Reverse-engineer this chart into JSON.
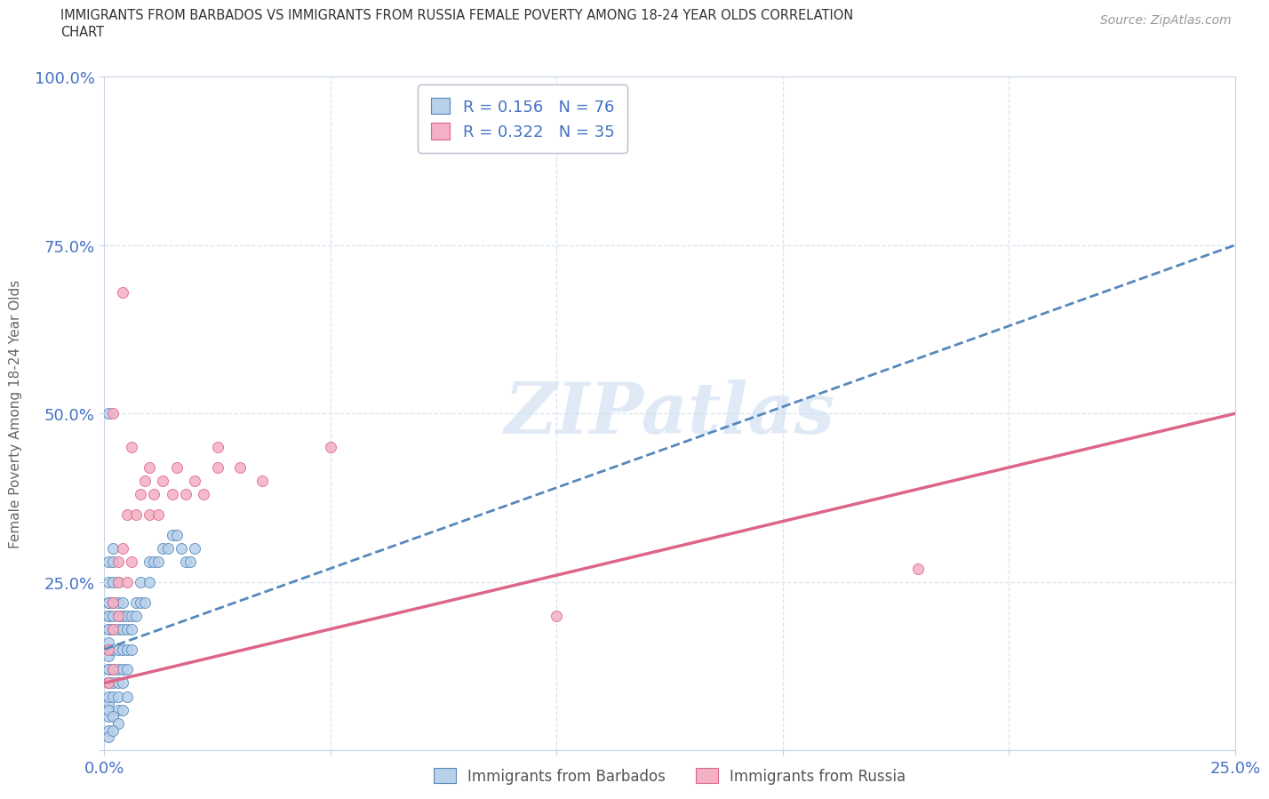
{
  "title_line1": "IMMIGRANTS FROM BARBADOS VS IMMIGRANTS FROM RUSSIA FEMALE POVERTY AMONG 18-24 YEAR OLDS CORRELATION",
  "title_line2": "CHART",
  "source": "Source: ZipAtlas.com",
  "ylabel": "Female Poverty Among 18-24 Year Olds",
  "xlim": [
    0.0,
    0.25
  ],
  "ylim": [
    0.0,
    1.0
  ],
  "barbados_fill": "#b8d0ea",
  "barbados_edge": "#5588bb",
  "russia_fill": "#f4b0c4",
  "russia_edge": "#dd6688",
  "trend_blue": "#5588bb",
  "trend_pink": "#dd6688",
  "watermark_text": "ZIPatlas",
  "watermark_color": "#ccddf0",
  "R_barbados": 0.156,
  "N_barbados": 76,
  "R_russia": 0.322,
  "N_russia": 35,
  "grid_color": "#d8e4f0",
  "tick_color": "#4472c4",
  "title_color": "#333333",
  "source_color": "#999999",
  "trend_blue_intercept": 0.15,
  "trend_blue_slope": 2.4,
  "trend_pink_intercept": 0.1,
  "trend_pink_slope": 1.6,
  "barbados_x": [
    0.001,
    0.001,
    0.001,
    0.001,
    0.001,
    0.001,
    0.001,
    0.001,
    0.001,
    0.001,
    0.001,
    0.001,
    0.001,
    0.001,
    0.001,
    0.001,
    0.001,
    0.001,
    0.001,
    0.001,
    0.002,
    0.002,
    0.002,
    0.002,
    0.002,
    0.002,
    0.002,
    0.002,
    0.002,
    0.002,
    0.003,
    0.003,
    0.003,
    0.003,
    0.003,
    0.003,
    0.003,
    0.003,
    0.003,
    0.004,
    0.004,
    0.004,
    0.004,
    0.004,
    0.004,
    0.005,
    0.005,
    0.005,
    0.005,
    0.005,
    0.006,
    0.006,
    0.006,
    0.007,
    0.007,
    0.008,
    0.008,
    0.009,
    0.01,
    0.01,
    0.011,
    0.012,
    0.013,
    0.014,
    0.015,
    0.016,
    0.017,
    0.018,
    0.019,
    0.02,
    0.001,
    0.002,
    0.003,
    0.004,
    0.001,
    0.002
  ],
  "barbados_y": [
    0.05,
    0.07,
    0.1,
    0.12,
    0.15,
    0.18,
    0.2,
    0.22,
    0.25,
    0.28,
    0.08,
    0.1,
    0.12,
    0.14,
    0.16,
    0.18,
    0.2,
    0.22,
    0.06,
    0.5,
    0.08,
    0.1,
    0.12,
    0.15,
    0.18,
    0.2,
    0.22,
    0.25,
    0.28,
    0.3,
    0.1,
    0.12,
    0.15,
    0.18,
    0.2,
    0.22,
    0.25,
    0.08,
    0.06,
    0.12,
    0.15,
    0.18,
    0.2,
    0.22,
    0.1,
    0.15,
    0.18,
    0.2,
    0.12,
    0.08,
    0.18,
    0.2,
    0.15,
    0.2,
    0.22,
    0.22,
    0.25,
    0.22,
    0.25,
    0.28,
    0.28,
    0.28,
    0.3,
    0.3,
    0.32,
    0.32,
    0.3,
    0.28,
    0.28,
    0.3,
    0.03,
    0.05,
    0.04,
    0.06,
    0.02,
    0.03
  ],
  "russia_x": [
    0.001,
    0.001,
    0.002,
    0.002,
    0.002,
    0.003,
    0.003,
    0.003,
    0.004,
    0.004,
    0.005,
    0.005,
    0.006,
    0.006,
    0.007,
    0.008,
    0.009,
    0.01,
    0.01,
    0.011,
    0.012,
    0.013,
    0.015,
    0.016,
    0.018,
    0.02,
    0.022,
    0.025,
    0.025,
    0.03,
    0.035,
    0.05,
    0.1,
    0.18,
    0.002
  ],
  "russia_y": [
    0.1,
    0.15,
    0.12,
    0.18,
    0.22,
    0.2,
    0.25,
    0.28,
    0.68,
    0.3,
    0.25,
    0.35,
    0.28,
    0.45,
    0.35,
    0.38,
    0.4,
    0.35,
    0.42,
    0.38,
    0.35,
    0.4,
    0.38,
    0.42,
    0.38,
    0.4,
    0.38,
    0.42,
    0.45,
    0.42,
    0.4,
    0.45,
    0.2,
    0.27,
    0.5
  ]
}
